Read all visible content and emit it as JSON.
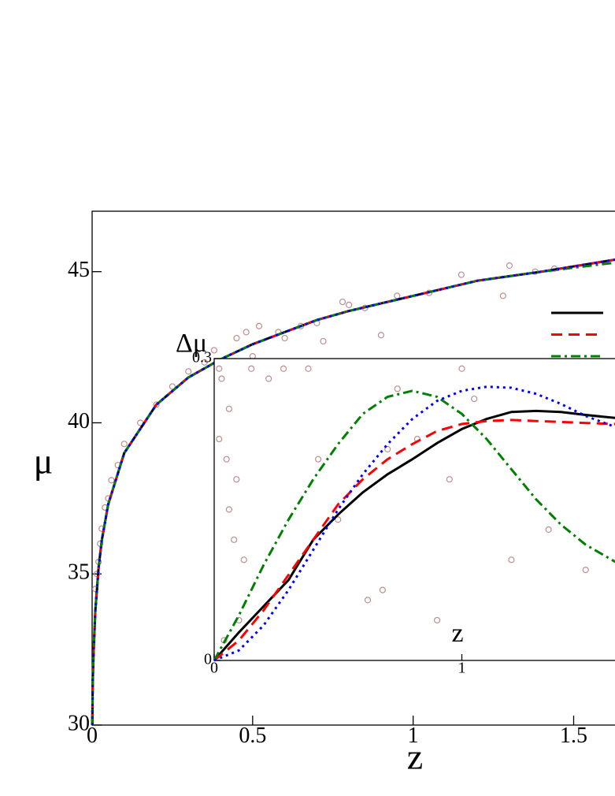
{
  "chart_data": [
    {
      "type": "line",
      "xlabel": "z",
      "ylabel": "μ",
      "xlim": [
        0,
        1.63
      ],
      "ylim": [
        30,
        47
      ],
      "xticks": [
        0,
        0.5,
        1,
        1.5
      ],
      "yticks": [
        30,
        35,
        40,
        45
      ],
      "x": [
        0.0005,
        0.002,
        0.005,
        0.01,
        0.02,
        0.03,
        0.05,
        0.1,
        0.2,
        0.3,
        0.4,
        0.5,
        0.6,
        0.7,
        0.8,
        1.0,
        1.2,
        1.4,
        1.63
      ],
      "series": [
        {
          "color": "#000000",
          "dash": "",
          "values": [
            30,
            31.5,
            32.5,
            33.8,
            35.2,
            36.1,
            37.3,
            39.0,
            40.6,
            41.5,
            42.1,
            42.6,
            43.0,
            43.4,
            43.7,
            44.2,
            44.7,
            45.0,
            45.4
          ]
        },
        {
          "color": "#ff0000",
          "dash": "14 8",
          "values": [
            30,
            31.5,
            32.5,
            33.8,
            35.2,
            36.1,
            37.3,
            39.0,
            40.6,
            41.5,
            42.1,
            42.6,
            43.0,
            43.4,
            43.7,
            44.2,
            44.7,
            45.0,
            45.4
          ]
        },
        {
          "color": "#008000",
          "dash": "12 5 3 5",
          "values": [
            30,
            31.5,
            32.5,
            33.8,
            35.2,
            36.1,
            37.3,
            39.0,
            40.6,
            41.5,
            42.1,
            42.6,
            43.0,
            43.4,
            43.7,
            44.2,
            44.7,
            45.0,
            45.3
          ]
        },
        {
          "color": "#0000ff",
          "dash": "3 5",
          "values": [
            30,
            31.5,
            32.5,
            33.8,
            35.2,
            36.1,
            37.3,
            39.0,
            40.6,
            41.5,
            42.1,
            42.6,
            43.0,
            43.4,
            43.7,
            44.2,
            44.7,
            45.0,
            45.4
          ]
        }
      ],
      "markers": {
        "color": "#bc8f8f",
        "x": [
          0.01,
          0.015,
          0.02,
          0.025,
          0.03,
          0.04,
          0.05,
          0.06,
          0.08,
          0.1,
          0.15,
          0.2,
          0.25,
          0.3,
          0.35,
          0.38,
          0.42,
          0.45,
          0.48,
          0.5,
          0.52,
          0.55,
          0.58,
          0.6,
          0.62,
          0.65,
          0.7,
          0.72,
          0.78,
          0.8,
          0.85,
          0.9,
          0.95,
          1.05,
          1.15,
          1.28,
          1.3,
          1.38,
          1.44
        ],
        "y": [
          34.5,
          35.0,
          35.4,
          36.0,
          36.5,
          37.2,
          37.5,
          38.1,
          38.6,
          39.3,
          40.0,
          40.6,
          41.2,
          41.7,
          42.0,
          42.4,
          40.8,
          42.8,
          43.0,
          42.2,
          43.2,
          41.9,
          43.0,
          42.8,
          41.6,
          43.2,
          43.3,
          42.7,
          44.0,
          43.9,
          43.8,
          42.9,
          44.2,
          44.3,
          44.9,
          44.2,
          45.2,
          45.0,
          45.1
        ]
      }
    },
    {
      "type": "line",
      "xlabel": "z",
      "ylabel": "Δμ",
      "xlim": [
        0,
        1.62
      ],
      "ylim": [
        0,
        0.3
      ],
      "xticks": [
        0,
        1
      ],
      "yticks": [
        0,
        {
          "value": 0.3,
          "label": "0.3"
        }
      ],
      "x": [
        0,
        0.1,
        0.2,
        0.3,
        0.4,
        0.5,
        0.6,
        0.7,
        0.8,
        0.9,
        1.0,
        1.1,
        1.2,
        1.3,
        1.4,
        1.5,
        1.62
      ],
      "series": [
        {
          "color": "#000000",
          "dash": "",
          "values": [
            0,
            0.028,
            0.054,
            0.08,
            0.12,
            0.145,
            0.167,
            0.185,
            0.2,
            0.216,
            0.23,
            0.24,
            0.247,
            0.248,
            0.247,
            0.244,
            0.241
          ]
        },
        {
          "color": "#ff0000",
          "dash": "14 8",
          "values": [
            0,
            0.02,
            0.05,
            0.085,
            0.12,
            0.155,
            0.18,
            0.2,
            0.215,
            0.228,
            0.235,
            0.238,
            0.239,
            0.238,
            0.237,
            0.236,
            0.235
          ]
        },
        {
          "color": "#008000",
          "dash": "12 5 3 5",
          "values": [
            0,
            0.045,
            0.095,
            0.14,
            0.18,
            0.215,
            0.245,
            0.262,
            0.268,
            0.262,
            0.245,
            0.22,
            0.19,
            0.16,
            0.135,
            0.115,
            0.098
          ]
        },
        {
          "color": "#0000ff",
          "dash": "3 5",
          "values": [
            0,
            0.01,
            0.035,
            0.07,
            0.11,
            0.15,
            0.185,
            0.215,
            0.24,
            0.258,
            0.268,
            0.272,
            0.271,
            0.265,
            0.255,
            0.243,
            0.232
          ]
        }
      ],
      "markers": {
        "color": "#bc8f8f",
        "x": [
          0.02,
          0.03,
          0.02,
          0.05,
          0.06,
          0.08,
          0.1,
          0.04,
          0.06,
          0.09,
          0.12,
          0.15,
          0.22,
          0.28,
          0.38,
          0.42,
          0.5,
          0.62,
          0.68,
          0.7,
          0.74,
          0.82,
          0.9,
          0.95,
          1.0,
          1.05,
          1.2,
          1.35,
          1.5
        ],
        "y": [
          0.29,
          0.28,
          0.22,
          0.2,
          0.15,
          0.12,
          0.04,
          0.02,
          0.25,
          0.18,
          0.1,
          0.29,
          0.28,
          0.29,
          0.29,
          0.2,
          0.14,
          0.06,
          0.07,
          0.21,
          0.27,
          0.22,
          0.04,
          0.18,
          0.29,
          0.26,
          0.1,
          0.13,
          0.09
        ]
      }
    }
  ]
}
